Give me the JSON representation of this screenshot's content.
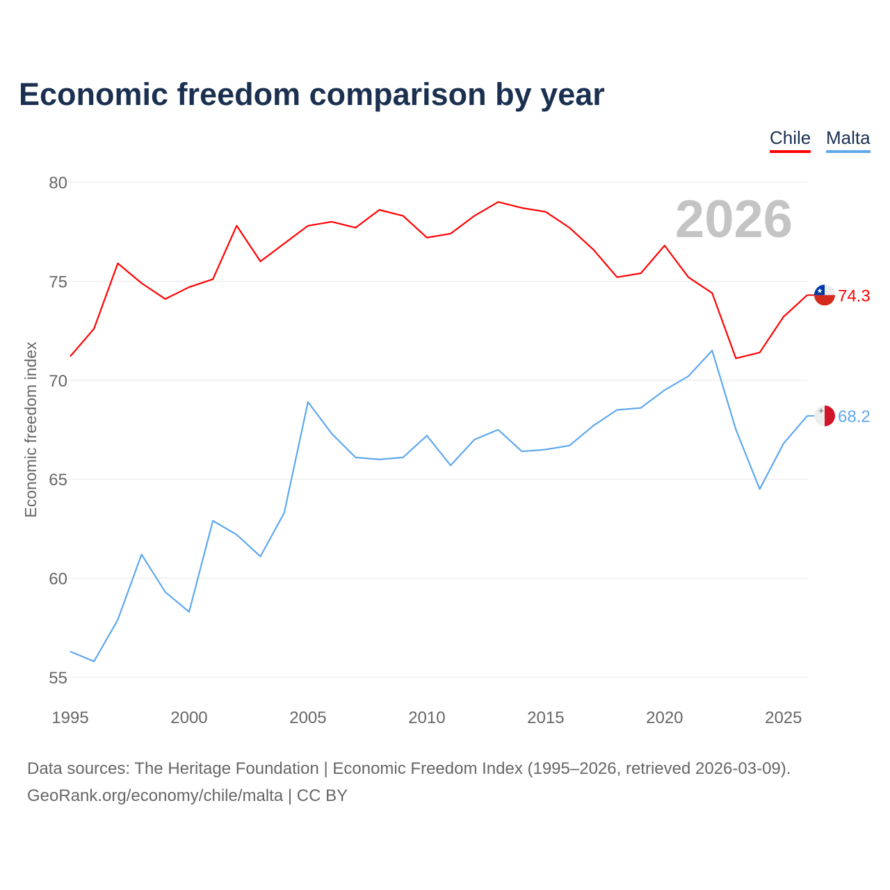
{
  "chart_data": {
    "type": "line",
    "title": "Economic freedom comparison by year",
    "xlabel": "",
    "ylabel": "Economic freedom index",
    "ylim": [
      55,
      80
    ],
    "xlim": [
      1995,
      2026
    ],
    "yticks": [
      55,
      60,
      65,
      70,
      75,
      80
    ],
    "xticks": [
      1995,
      2000,
      2005,
      2010,
      2015,
      2020,
      2025
    ],
    "grid": true,
    "legend_placement": "top-right",
    "watermark_year": "2026",
    "x": [
      1995,
      1996,
      1997,
      1998,
      1999,
      2000,
      2001,
      2002,
      2003,
      2004,
      2005,
      2006,
      2007,
      2008,
      2009,
      2010,
      2011,
      2012,
      2013,
      2014,
      2015,
      2016,
      2017,
      2018,
      2019,
      2020,
      2021,
      2022,
      2023,
      2024,
      2025,
      2026
    ],
    "series": [
      {
        "name": "Chile",
        "color": "#ff0000",
        "end_label": "74.3",
        "values": [
          71.2,
          72.6,
          75.9,
          74.9,
          74.1,
          74.7,
          75.1,
          77.8,
          76.0,
          76.9,
          77.8,
          78.0,
          77.7,
          78.6,
          78.3,
          77.2,
          77.4,
          78.3,
          79.0,
          78.7,
          78.5,
          77.7,
          76.6,
          75.2,
          75.4,
          76.8,
          75.2,
          74.4,
          71.1,
          71.4,
          73.2,
          74.3
        ]
      },
      {
        "name": "Malta",
        "color": "#5ea8ee",
        "end_label": "68.2",
        "values": [
          56.3,
          55.8,
          57.9,
          61.2,
          59.3,
          58.3,
          62.9,
          62.2,
          61.1,
          63.3,
          68.9,
          67.3,
          66.1,
          66.0,
          66.1,
          67.2,
          65.7,
          67.0,
          67.5,
          66.4,
          66.5,
          66.7,
          67.7,
          68.5,
          68.6,
          69.5,
          70.2,
          71.5,
          67.5,
          64.5,
          66.8,
          68.2
        ]
      }
    ]
  },
  "footer": {
    "source": "Data sources: The Heritage Foundation | Economic Freedom Index (1995–2026, retrieved 2026-03-09).",
    "credit": "GeoRank.org/economy/chile/malta | CC BY"
  }
}
